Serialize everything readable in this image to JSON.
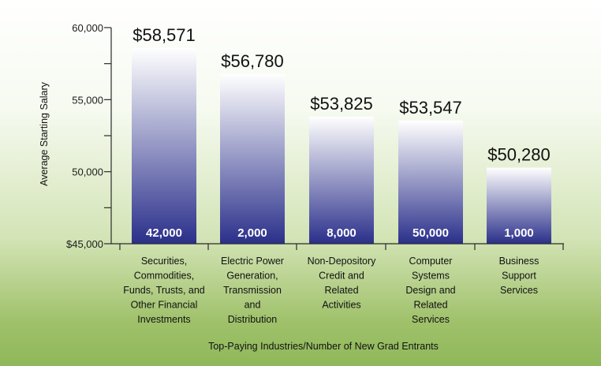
{
  "chart_data": {
    "type": "bar",
    "categories": [
      "Securities, Commodities, Funds, Trusts, and Other Financial Investments",
      "Electric Power Generation, Transmission and Distribution",
      "Non-Depository Credit and Related Activities",
      "Computer Systems Design and Related Services",
      "Business Support Services"
    ],
    "category_lines": [
      [
        "Securities,",
        "Commodities,",
        "Funds, Trusts, and",
        "Other Financial",
        "Investments"
      ],
      [
        "Electric Power",
        "Generation,",
        "Transmission",
        "and",
        "Distribution"
      ],
      [
        "Non-Depository",
        "Credit and",
        "Related",
        "Activities"
      ],
      [
        "Computer",
        "Systems",
        "Design and",
        "Related",
        "Services"
      ],
      [
        "Business",
        "Support",
        "Services"
      ]
    ],
    "values": [
      58571,
      56780,
      53825,
      53547,
      50280
    ],
    "value_labels": [
      "$58,571",
      "$56,780",
      "$53,825",
      "$53,547",
      "$50,280"
    ],
    "new_grad_entrants": [
      42000,
      2000,
      8000,
      50000,
      1000
    ],
    "entrant_labels": [
      "42,000",
      "2,000",
      "8,000",
      "50,000",
      "1,000"
    ],
    "ylim": [
      45000,
      60000
    ],
    "yticks": [
      45000,
      50000,
      55000,
      60000
    ],
    "ytick_labels": [
      "$45,000",
      "50,000",
      "55,000",
      "60,000"
    ],
    "ylabel": "Average Starting Salary",
    "xlabel": "Top-Paying Industries/Number of New Grad Entrants",
    "grid": false,
    "colors": {
      "bar_top": "#ffffff",
      "bar_bottom": "#2a2f8a",
      "axis": "#2b2b2b"
    }
  }
}
